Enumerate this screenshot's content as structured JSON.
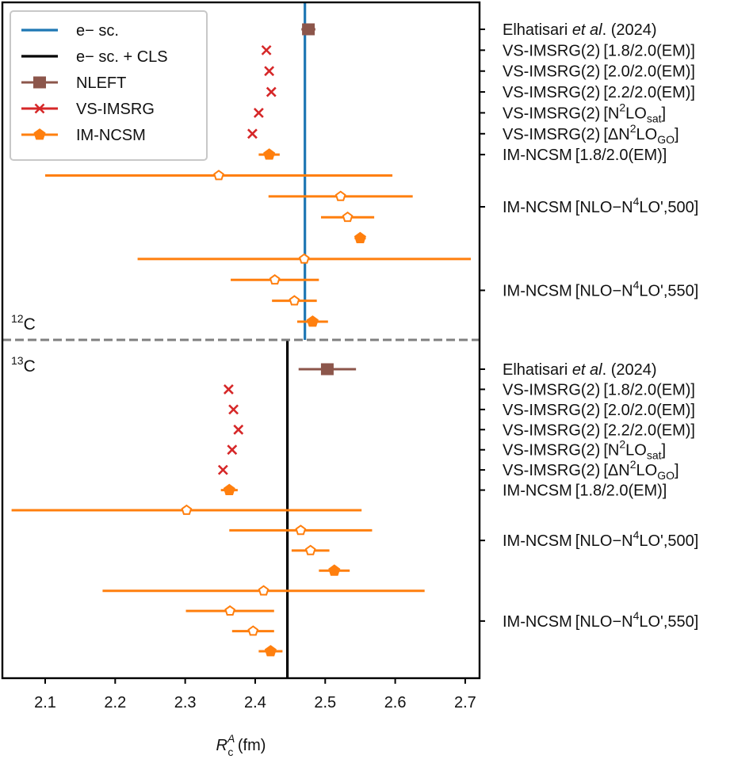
{
  "chart_data": {
    "type": "scatter",
    "subtype": "horizontal-errorbar",
    "xlabel_main": "R",
    "xlabel_sub": "c",
    "xlabel_sup": "A",
    "xlabel_unit": " (fm)",
    "xlim": [
      2.05,
      2.72
    ],
    "xticks": [
      2.1,
      2.2,
      2.3,
      2.4,
      2.5,
      2.6,
      2.7
    ],
    "xtick_labels": [
      "2.1",
      "2.2",
      "2.3",
      "2.4",
      "2.5",
      "2.6",
      "2.7"
    ],
    "legend": {
      "placement": "top-left",
      "entries": [
        {
          "key": "exp_blue",
          "label": "e− sc.",
          "marker": "line",
          "color": "#1f77b4"
        },
        {
          "key": "exp_black",
          "label": "e− sc. + CLS",
          "marker": "line",
          "color": "#000000"
        },
        {
          "key": "nleft",
          "label": "NLEFT",
          "marker": "square",
          "color": "#8c564b"
        },
        {
          "key": "vs",
          "label": "VS-IMSRG",
          "marker": "x",
          "color": "#d62728"
        },
        {
          "key": "ncsm",
          "label": "IM-NCSM",
          "marker": "pentagon",
          "color": "#ff7f0e"
        }
      ]
    },
    "panels": [
      {
        "nucleus_mass": "12",
        "nucleus_symbol": "C",
        "reference_line": {
          "label": "e− sc.",
          "value": 2.471,
          "color": "#1f77b4"
        },
        "points": [
          {
            "row": 0,
            "series": "NLEFT",
            "x": 2.476,
            "xerr": 0.01,
            "marker": "square"
          },
          {
            "row": 1,
            "series": "VS-IMSRG",
            "x": 2.416,
            "marker": "x"
          },
          {
            "row": 2,
            "series": "VS-IMSRG",
            "x": 2.42,
            "marker": "x"
          },
          {
            "row": 3,
            "series": "VS-IMSRG",
            "x": 2.423,
            "marker": "x"
          },
          {
            "row": 4,
            "series": "VS-IMSRG",
            "x": 2.405,
            "marker": "x"
          },
          {
            "row": 5,
            "series": "VS-IMSRG",
            "x": 2.396,
            "marker": "x"
          },
          {
            "row": 6,
            "series": "IM-NCSM",
            "x": 2.42,
            "xerr": 0.015,
            "marker": "pentagon-filled"
          },
          {
            "row": 7,
            "series": "IM-NCSM",
            "x": 2.348,
            "xerr": 0.248,
            "marker": "pentagon-open"
          },
          {
            "row": 8,
            "series": "IM-NCSM",
            "x": 2.522,
            "xerr": 0.103,
            "marker": "pentagon-open"
          },
          {
            "row": 9,
            "series": "IM-NCSM",
            "x": 2.532,
            "xerr": 0.038,
            "marker": "pentagon-open"
          },
          {
            "row": 10,
            "series": "IM-NCSM",
            "x": 2.55,
            "xerr": 0.008,
            "marker": "pentagon-filled"
          },
          {
            "row": 11,
            "series": "IM-NCSM",
            "x": 2.47,
            "xerr": 0.238,
            "marker": "pentagon-open"
          },
          {
            "row": 12,
            "series": "IM-NCSM",
            "x": 2.428,
            "xerr": 0.063,
            "marker": "pentagon-open"
          },
          {
            "row": 13,
            "series": "IM-NCSM",
            "x": 2.456,
            "xerr": 0.032,
            "marker": "pentagon-open"
          },
          {
            "row": 14,
            "series": "IM-NCSM",
            "x": 2.482,
            "xerr": 0.022,
            "marker": "pentagon-filled"
          }
        ],
        "labels": [
          {
            "row": 0,
            "parts": [
              [
                "Elhatisari ",
                ""
              ],
              [
                "et al",
                "i"
              ],
              [
                ". (2024)",
                ""
              ]
            ]
          },
          {
            "row": 1,
            "parts": [
              [
                "VS-IMSRG(2) [1.8/2.0(EM)]",
                ""
              ]
            ]
          },
          {
            "row": 2,
            "parts": [
              [
                "VS-IMSRG(2) [2.0/2.0(EM)]",
                ""
              ]
            ]
          },
          {
            "row": 3,
            "parts": [
              [
                "VS-IMSRG(2) [2.2/2.0(EM)]",
                ""
              ]
            ]
          },
          {
            "row": 4,
            "parts": [
              [
                "VS-IMSRG(2) [N",
                ""
              ],
              [
                "2",
                "sup"
              ],
              [
                "LO",
                ""
              ],
              [
                "sat",
                "sub"
              ],
              [
                "]",
                ""
              ]
            ]
          },
          {
            "row": 5,
            "parts": [
              [
                "VS-IMSRG(2) [ΔN",
                ""
              ],
              [
                "2",
                "sup"
              ],
              [
                "LO",
                ""
              ],
              [
                "GO",
                "sub"
              ],
              [
                "]",
                ""
              ]
            ]
          },
          {
            "row": 6,
            "parts": [
              [
                "IM-NCSM [1.8/2.0(EM)]",
                ""
              ]
            ]
          },
          {
            "row": 8.5,
            "parts": [
              [
                "IM-NCSM [NLO−N",
                ""
              ],
              [
                "4",
                "sup"
              ],
              [
                "LO',500]",
                ""
              ]
            ]
          },
          {
            "row": 12.5,
            "parts": [
              [
                "IM-NCSM [NLO−N",
                ""
              ],
              [
                "4",
                "sup"
              ],
              [
                "LO',550]",
                ""
              ]
            ]
          }
        ]
      },
      {
        "nucleus_mass": "13",
        "nucleus_symbol": "C",
        "reference_line": {
          "label": "e− sc. + CLS",
          "value": 2.446,
          "color": "#000000"
        },
        "points": [
          {
            "row": 0,
            "series": "NLEFT",
            "x": 2.503,
            "xerr": 0.041,
            "marker": "square"
          },
          {
            "row": 1,
            "series": "VS-IMSRG",
            "x": 2.362,
            "marker": "x"
          },
          {
            "row": 2,
            "series": "VS-IMSRG",
            "x": 2.369,
            "marker": "x"
          },
          {
            "row": 3,
            "series": "VS-IMSRG",
            "x": 2.376,
            "marker": "x"
          },
          {
            "row": 4,
            "series": "VS-IMSRG",
            "x": 2.367,
            "marker": "x"
          },
          {
            "row": 5,
            "series": "VS-IMSRG",
            "x": 2.354,
            "marker": "x"
          },
          {
            "row": 6,
            "series": "IM-NCSM",
            "x": 2.363,
            "xerr": 0.012,
            "marker": "pentagon-filled"
          },
          {
            "row": 7,
            "series": "IM-NCSM",
            "x": 2.302,
            "xerr": 0.25,
            "marker": "pentagon-open"
          },
          {
            "row": 8,
            "series": "IM-NCSM",
            "x": 2.465,
            "xerr": 0.102,
            "marker": "pentagon-open"
          },
          {
            "row": 9,
            "series": "IM-NCSM",
            "x": 2.479,
            "xerr": 0.027,
            "marker": "pentagon-open"
          },
          {
            "row": 10,
            "series": "IM-NCSM",
            "x": 2.513,
            "xerr": 0.022,
            "marker": "pentagon-filled"
          },
          {
            "row": 11,
            "series": "IM-NCSM",
            "x": 2.412,
            "xerr": 0.23,
            "marker": "pentagon-open"
          },
          {
            "row": 12,
            "series": "IM-NCSM",
            "x": 2.364,
            "xerr": 0.063,
            "marker": "pentagon-open"
          },
          {
            "row": 13,
            "series": "IM-NCSM",
            "x": 2.397,
            "xerr": 0.03,
            "marker": "pentagon-open"
          },
          {
            "row": 14,
            "series": "IM-NCSM",
            "x": 2.422,
            "xerr": 0.017,
            "marker": "pentagon-filled"
          }
        ],
        "labels": [
          {
            "row": 0,
            "parts": [
              [
                "Elhatisari ",
                ""
              ],
              [
                "et al",
                "i"
              ],
              [
                ". (2024)",
                ""
              ]
            ]
          },
          {
            "row": 1,
            "parts": [
              [
                "VS-IMSRG(2) [1.8/2.0(EM)]",
                ""
              ]
            ]
          },
          {
            "row": 2,
            "parts": [
              [
                "VS-IMSRG(2) [2.0/2.0(EM)]",
                ""
              ]
            ]
          },
          {
            "row": 3,
            "parts": [
              [
                "VS-IMSRG(2) [2.2/2.0(EM)]",
                ""
              ]
            ]
          },
          {
            "row": 4,
            "parts": [
              [
                "VS-IMSRG(2) [N",
                ""
              ],
              [
                "2",
                "sup"
              ],
              [
                "LO",
                ""
              ],
              [
                "sat",
                "sub"
              ],
              [
                "]",
                ""
              ]
            ]
          },
          {
            "row": 5,
            "parts": [
              [
                "VS-IMSRG(2) [ΔN",
                ""
              ],
              [
                "2",
                "sup"
              ],
              [
                "LO",
                ""
              ],
              [
                "GO",
                "sub"
              ],
              [
                "]",
                ""
              ]
            ]
          },
          {
            "row": 6,
            "parts": [
              [
                "IM-NCSM [1.8/2.0(EM)]",
                ""
              ]
            ]
          },
          {
            "row": 8.5,
            "parts": [
              [
                "IM-NCSM [NLO−N",
                ""
              ],
              [
                "4",
                "sup"
              ],
              [
                "LO',500]",
                ""
              ]
            ]
          },
          {
            "row": 12.5,
            "parts": [
              [
                "IM-NCSM [NLO−N",
                ""
              ],
              [
                "4",
                "sup"
              ],
              [
                "LO',550]",
                ""
              ]
            ]
          }
        ]
      }
    ]
  }
}
